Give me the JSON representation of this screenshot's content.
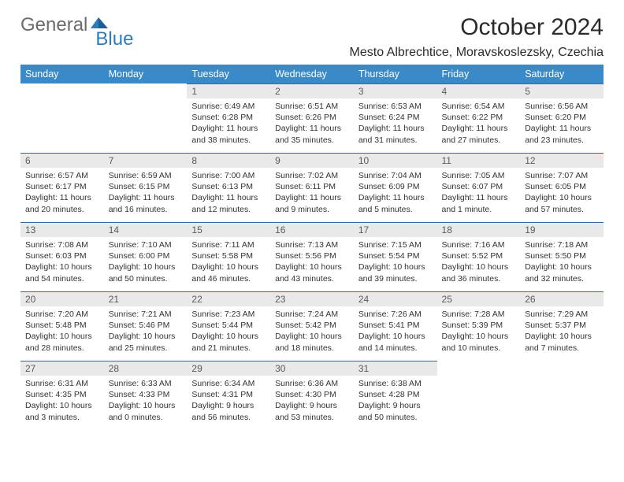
{
  "logo": {
    "word1": "General",
    "word2": "Blue"
  },
  "title": "October 2024",
  "subtitle": "Mesto Albrechtice, Moravskoslezsky, Czechia",
  "colors": {
    "header_bg": "#3a89c9",
    "header_text": "#ffffff",
    "daynum_bg": "#e9e9e9",
    "daynum_text": "#5b5b5b",
    "body_text": "#333333",
    "rule": "#3a6a9a",
    "logo_gray": "#6b6b6b",
    "logo_blue": "#2d7bbf"
  },
  "columns": [
    "Sunday",
    "Monday",
    "Tuesday",
    "Wednesday",
    "Thursday",
    "Friday",
    "Saturday"
  ],
  "weeks": [
    [
      null,
      null,
      {
        "n": "1",
        "sr": "6:49 AM",
        "ss": "6:28 PM",
        "dl": "11 hours and 38 minutes."
      },
      {
        "n": "2",
        "sr": "6:51 AM",
        "ss": "6:26 PM",
        "dl": "11 hours and 35 minutes."
      },
      {
        "n": "3",
        "sr": "6:53 AM",
        "ss": "6:24 PM",
        "dl": "11 hours and 31 minutes."
      },
      {
        "n": "4",
        "sr": "6:54 AM",
        "ss": "6:22 PM",
        "dl": "11 hours and 27 minutes."
      },
      {
        "n": "5",
        "sr": "6:56 AM",
        "ss": "6:20 PM",
        "dl": "11 hours and 23 minutes."
      }
    ],
    [
      {
        "n": "6",
        "sr": "6:57 AM",
        "ss": "6:17 PM",
        "dl": "11 hours and 20 minutes."
      },
      {
        "n": "7",
        "sr": "6:59 AM",
        "ss": "6:15 PM",
        "dl": "11 hours and 16 minutes."
      },
      {
        "n": "8",
        "sr": "7:00 AM",
        "ss": "6:13 PM",
        "dl": "11 hours and 12 minutes."
      },
      {
        "n": "9",
        "sr": "7:02 AM",
        "ss": "6:11 PM",
        "dl": "11 hours and 9 minutes."
      },
      {
        "n": "10",
        "sr": "7:04 AM",
        "ss": "6:09 PM",
        "dl": "11 hours and 5 minutes."
      },
      {
        "n": "11",
        "sr": "7:05 AM",
        "ss": "6:07 PM",
        "dl": "11 hours and 1 minute."
      },
      {
        "n": "12",
        "sr": "7:07 AM",
        "ss": "6:05 PM",
        "dl": "10 hours and 57 minutes."
      }
    ],
    [
      {
        "n": "13",
        "sr": "7:08 AM",
        "ss": "6:03 PM",
        "dl": "10 hours and 54 minutes."
      },
      {
        "n": "14",
        "sr": "7:10 AM",
        "ss": "6:00 PM",
        "dl": "10 hours and 50 minutes."
      },
      {
        "n": "15",
        "sr": "7:11 AM",
        "ss": "5:58 PM",
        "dl": "10 hours and 46 minutes."
      },
      {
        "n": "16",
        "sr": "7:13 AM",
        "ss": "5:56 PM",
        "dl": "10 hours and 43 minutes."
      },
      {
        "n": "17",
        "sr": "7:15 AM",
        "ss": "5:54 PM",
        "dl": "10 hours and 39 minutes."
      },
      {
        "n": "18",
        "sr": "7:16 AM",
        "ss": "5:52 PM",
        "dl": "10 hours and 36 minutes."
      },
      {
        "n": "19",
        "sr": "7:18 AM",
        "ss": "5:50 PM",
        "dl": "10 hours and 32 minutes."
      }
    ],
    [
      {
        "n": "20",
        "sr": "7:20 AM",
        "ss": "5:48 PM",
        "dl": "10 hours and 28 minutes."
      },
      {
        "n": "21",
        "sr": "7:21 AM",
        "ss": "5:46 PM",
        "dl": "10 hours and 25 minutes."
      },
      {
        "n": "22",
        "sr": "7:23 AM",
        "ss": "5:44 PM",
        "dl": "10 hours and 21 minutes."
      },
      {
        "n": "23",
        "sr": "7:24 AM",
        "ss": "5:42 PM",
        "dl": "10 hours and 18 minutes."
      },
      {
        "n": "24",
        "sr": "7:26 AM",
        "ss": "5:41 PM",
        "dl": "10 hours and 14 minutes."
      },
      {
        "n": "25",
        "sr": "7:28 AM",
        "ss": "5:39 PM",
        "dl": "10 hours and 10 minutes."
      },
      {
        "n": "26",
        "sr": "7:29 AM",
        "ss": "5:37 PM",
        "dl": "10 hours and 7 minutes."
      }
    ],
    [
      {
        "n": "27",
        "sr": "6:31 AM",
        "ss": "4:35 PM",
        "dl": "10 hours and 3 minutes."
      },
      {
        "n": "28",
        "sr": "6:33 AM",
        "ss": "4:33 PM",
        "dl": "10 hours and 0 minutes."
      },
      {
        "n": "29",
        "sr": "6:34 AM",
        "ss": "4:31 PM",
        "dl": "9 hours and 56 minutes."
      },
      {
        "n": "30",
        "sr": "6:36 AM",
        "ss": "4:30 PM",
        "dl": "9 hours and 53 minutes."
      },
      {
        "n": "31",
        "sr": "6:38 AM",
        "ss": "4:28 PM",
        "dl": "9 hours and 50 minutes."
      },
      null,
      null
    ]
  ],
  "labels": {
    "sunrise": "Sunrise:",
    "sunset": "Sunset:",
    "daylight": "Daylight:"
  }
}
